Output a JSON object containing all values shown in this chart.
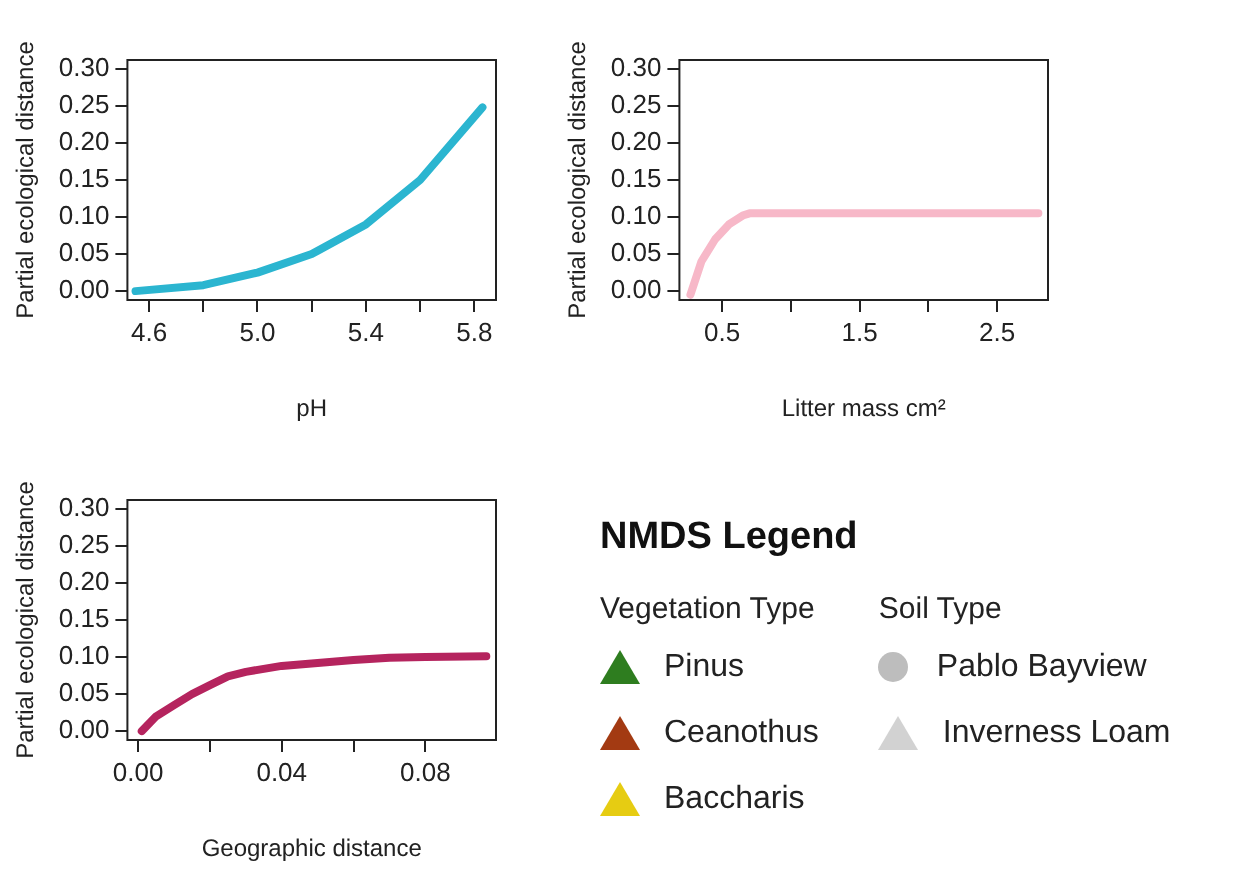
{
  "chart_data": [
    {
      "type": "line",
      "xlabel": "pH",
      "ylabel": "Partial ecological distance",
      "series": [
        {
          "color": "#2bb5d0",
          "x": [
            4.55,
            4.8,
            5.0,
            5.2,
            5.4,
            5.6,
            5.83
          ],
          "values": [
            0,
            0.008,
            0.025,
            0.05,
            0.09,
            0.15,
            0.248
          ]
        }
      ],
      "xlim": [
        4.52,
        5.88
      ],
      "xticks": [
        {
          "value": 4.6,
          "label": "4.6"
        },
        {
          "value": 4.8,
          "label": null
        },
        {
          "value": 5,
          "label": "5.0"
        },
        {
          "value": 5.2,
          "label": null
        },
        {
          "value": 5.4,
          "label": "5.4"
        },
        {
          "value": 5.6,
          "label": null
        },
        {
          "value": 5.8,
          "label": "5.8"
        }
      ],
      "ylim": [
        -0.012,
        0.312
      ],
      "yticks": [
        {
          "value": 0,
          "label": "0.00"
        },
        0.05,
        {
          "value": 0.1,
          "label": "0.10"
        },
        0.15,
        {
          "value": 0.2,
          "label": "0.20"
        },
        0.25,
        {
          "value": 0.3,
          "label": "0.30"
        }
      ]
    },
    {
      "type": "line",
      "xlabel": "Litter mass cm²",
      "ylabel": "Partial ecological distance",
      "series": [
        {
          "color": "#f7b8c8",
          "x": [
            0.27,
            0.35,
            0.45,
            0.55,
            0.65,
            0.7,
            2.8
          ],
          "values": [
            -0.005,
            0.04,
            0.07,
            0.09,
            0.102,
            0.105,
            0.105
          ]
        }
      ],
      "xlim": [
        0.19,
        2.87
      ],
      "xticks": [
        0.5,
        {
          "value": 1,
          "label": null
        },
        1.5,
        {
          "value": 2,
          "label": null
        },
        2.5
      ],
      "ylim": [
        -0.012,
        0.312
      ],
      "yticks": [
        {
          "value": 0,
          "label": "0.00"
        },
        0.05,
        {
          "value": 0.1,
          "label": "0.10"
        },
        0.15,
        {
          "value": 0.2,
          "label": "0.20"
        },
        0.25,
        {
          "value": 0.3,
          "label": "0.30"
        }
      ]
    },
    {
      "type": "line",
      "xlabel": "Geographic distance",
      "ylabel": "Partial ecological distance",
      "series": [
        {
          "color": "#b5245e",
          "x": [
            0.001,
            0.005,
            0.01,
            0.015,
            0.02,
            0.025,
            0.03,
            0.04,
            0.05,
            0.06,
            0.07,
            0.08,
            0.097
          ],
          "values": [
            0,
            0.02,
            0.035,
            0.05,
            0.062,
            0.074,
            0.08,
            0.088,
            0.092,
            0.096,
            0.099,
            0.1,
            0.101
          ]
        }
      ],
      "xlim": [
        -0.003,
        0.0997
      ],
      "xticks": [
        {
          "value": 0,
          "label": "0.00"
        },
        {
          "value": 0.02,
          "label": null
        },
        0.04,
        {
          "value": 0.06,
          "label": null
        },
        0.08
      ],
      "ylim": [
        -0.012,
        0.312
      ],
      "yticks": [
        {
          "value": 0,
          "label": "0.00"
        },
        0.05,
        {
          "value": 0.1,
          "label": "0.10"
        },
        0.15,
        {
          "value": 0.2,
          "label": "0.20"
        },
        0.25,
        {
          "value": 0.3,
          "label": "0.30"
        }
      ]
    },
    {
      "type": "other",
      "title": "NMDS Legend",
      "annotations": [
        "Vegetation Type",
        "Pinus",
        "Ceanothus",
        "Baccharis",
        "Soil Type",
        "Pablo Bayview",
        "Inverness Loam"
      ]
    }
  ]
}
